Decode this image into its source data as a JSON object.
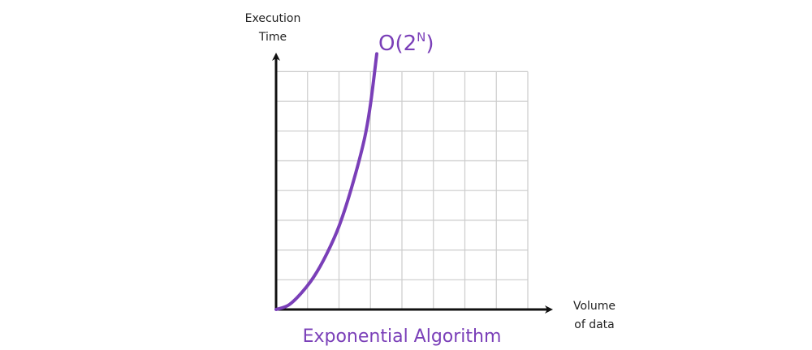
{
  "chart_data": {
    "type": "line",
    "title": "Exponential Algorithm",
    "xlabel": [
      "Volume",
      "of data"
    ],
    "ylabel": [
      "Execution",
      "Time"
    ],
    "grid": true,
    "grid_columns": 8,
    "grid_rows": 8,
    "xlim": [
      0,
      8
    ],
    "ylim": [
      0,
      8
    ],
    "series": [
      {
        "name": "O(2",
        "name_sup": "N",
        "name_close": ")",
        "x": [
          0,
          0.4,
          0.8,
          1.2,
          1.6,
          2.0,
          2.4,
          2.8,
          3.0,
          3.2
        ],
        "y": [
          0,
          0.15,
          0.55,
          1.1,
          1.85,
          2.8,
          4.1,
          5.7,
          6.9,
          8.6
        ]
      }
    ],
    "colors": {
      "curve": "#7a3fb8",
      "title": "#7a3fb8",
      "axis": "#111111",
      "grid": "#cccccc",
      "label": "#222222"
    }
  }
}
